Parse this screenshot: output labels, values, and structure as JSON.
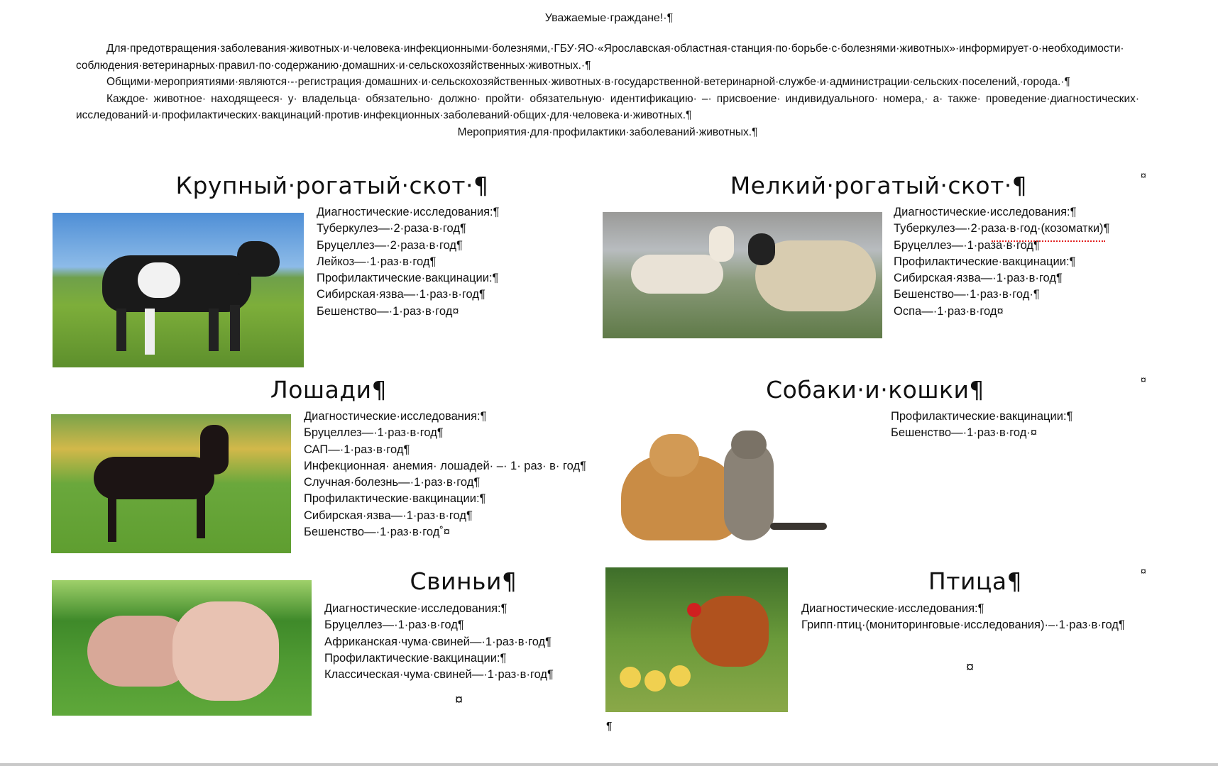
{
  "title": "Уважаемые·граждане!·¶",
  "intro": [
    "Для·предотвращения·заболевания·животных·и·человека·инфекционными·болезнями,·ГБУ·ЯО·«Ярославская·областная·станция·по·борьбе·с·болезнями·животных»·информирует·о·необходимости·соблюдения·ветеринарных·правил·по·содержанию·домашних·и·сельскохозяйственных·животных.·¶",
    "Общими·мероприятиями·являются·-·регистрация·домашних·и·сельскохозяйственных·животных·в·государственной·ветеринарной·службе·и·администрации·сельских·поселений,·города.·¶",
    "Каждое· животное· находящееся· у· владельца· обязательно· должно· пройти· обязательную· идентификацию· –· присвоение· индивидуального· номера,· а· также· проведение·диагностических·исследований·и·профилактических·вакцинаций·против·инфекционных·заболеваний·общих·для·человека·и·животных.¶",
    "Мероприятия·для·профилактики·заболеваний·животных.¶"
  ],
  "cell_end_mark": "¤",
  "para_mark": "¶",
  "cattle": {
    "heading": "Крупный·рогатый·скот·¶",
    "lines": [
      "Диагностические·исследования:¶",
      "Туберкулез—·2·раза·в·год¶",
      "Бруцеллез—·2·раза·в·год¶",
      "Лейкоз—·1·раз·в·год¶",
      "Профилактические·вакцинации:¶",
      "Сибирская·язва—·1·раз·в·год¶",
      "Бешенство—·1·раз·в·год¤"
    ]
  },
  "sheep": {
    "heading": "Мелкий·рогатый·скот·¶",
    "lines": [
      "Диагностические·исследования:¶",
      "Туберкулез—·2·раза·в·год·(козоматки)¶",
      "Бруцеллез—·1·раза·в·год¶",
      "Профилактические·вакцинации:¶",
      "Сибирская·язва—·1·раз·в·год¶",
      "Бешенство—·1·раз·в·год·¶",
      "Оспа—·1·раз·в·год¤"
    ]
  },
  "horses": {
    "heading": "Лошади¶",
    "lines": [
      "Диагностические·исследования:¶",
      "Бруцеллез—·1·раз·в·год¶",
      "САП—·1·раз·в·год¶",
      "Инфекционная· анемия· лошадей· –· 1· раз· в· год¶",
      "Случная·болезнь—·1·раз·в·год¶",
      "Профилактические·вакцинации:¶",
      "Сибирская·язва—·1·раз·в·год¶",
      "Бешенство—·1·раз·в·год˚¤"
    ]
  },
  "pets": {
    "heading": "Собаки·и·кошки¶",
    "lines": [
      "Профилактические·вакцинации:¶",
      "Бешенство—·1·раз·в·год·¤"
    ]
  },
  "pigs": {
    "heading": "Свиньи¶",
    "lines": [
      "Диагностические·исследования:¶",
      "Бруцеллез—·1·раз·в·год¶",
      "Африканская·чума·свиней—·1·раз·в·год¶",
      "Профилактические·вакцинации:¶",
      "Классическая·чума·свиней—·1·раз·в·год¶"
    ]
  },
  "poultry": {
    "heading": "Птица¶",
    "lines": [
      "Диагностические·исследования:¶",
      "Грипп·птиц·(мониторинговые·исследования)·–·1·раз·в·год¶"
    ]
  },
  "colors": {
    "spellcheck_underline": "#e02020",
    "format_marks": "#111111"
  }
}
